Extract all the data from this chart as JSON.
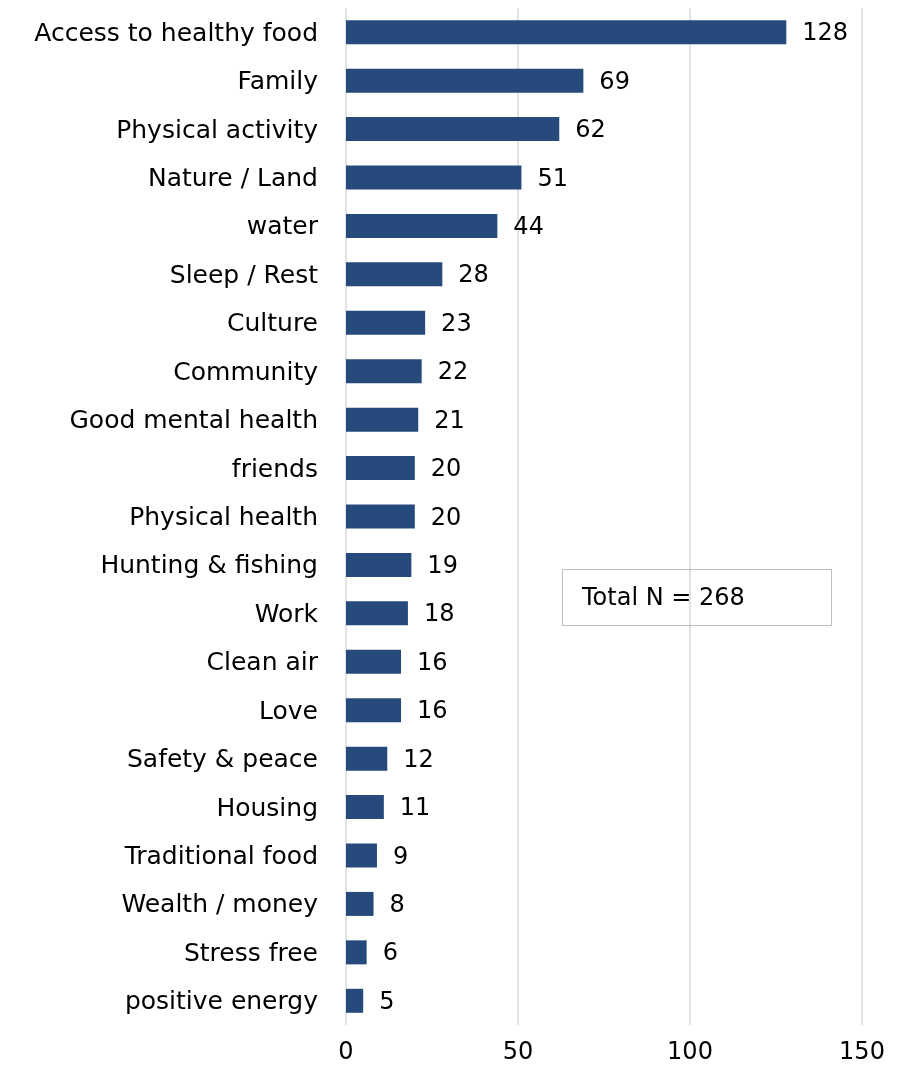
{
  "chart_data": {
    "type": "bar",
    "orientation": "horizontal",
    "categories": [
      "Access to healthy food",
      "Family",
      "Physical activity",
      "Nature / Land",
      "water",
      "Sleep / Rest",
      "Culture",
      "Community",
      "Good mental health",
      "friends",
      "Physical health",
      "Hunting & fishing",
      "Work",
      "Clean air",
      "Love",
      "Safety & peace",
      "Housing",
      "Traditional food",
      "Wealth / money",
      "Stress free",
      "positive energy"
    ],
    "values": [
      128,
      69,
      62,
      51,
      44,
      28,
      23,
      22,
      21,
      20,
      20,
      19,
      18,
      16,
      16,
      12,
      11,
      9,
      8,
      6,
      5
    ],
    "color": "#264a7b",
    "xlim": [
      0,
      150
    ],
    "xticks": [
      0,
      50,
      100,
      150
    ],
    "grid": "x",
    "data_labels": true,
    "annotations": [
      "Total N = 268"
    ]
  }
}
